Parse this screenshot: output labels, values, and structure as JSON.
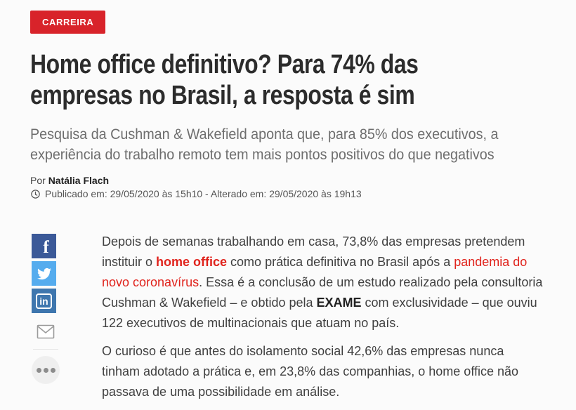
{
  "category": {
    "label": "CARREIRA"
  },
  "headline": {
    "lines": [
      "Home office definitivo? Para 74% das",
      "empresas no Brasil, a resposta é sim"
    ]
  },
  "subtitle": {
    "lines": [
      "Pesquisa da Cushman & Wakefield aponta que, para 85% dos executivos, a",
      "experiência do trabalho remoto tem mais pontos positivos do que negativos"
    ]
  },
  "byline": {
    "prefix": "Por",
    "author": "Natália Flach"
  },
  "timestamps": {
    "text": "Publicado em: 29/05/2020 às 15h10 - Alterado em: 29/05/2020 às 19h13"
  },
  "share": {
    "facebook": {
      "glyph": "f",
      "color": "#3b5998",
      "icon": "facebook-icon"
    },
    "twitter": {
      "color": "#55acee",
      "icon": "twitter-bird-icon"
    },
    "linkedin": {
      "glyph": "in",
      "color": "#3e76ae",
      "icon": "linkedin-icon"
    },
    "email": {
      "icon": "envelope-icon"
    },
    "more": {
      "icon": "ellipsis-icon"
    }
  },
  "article": {
    "paragraphs": [
      {
        "segments": [
          {
            "text": "Depois de semanas trabalhando em casa, 73,8% das empresas pretendem instituir o ",
            "style": "normal"
          },
          {
            "text": "home office",
            "style": "link-bold"
          },
          {
            "text": " como prática definitiva no Brasil após a ",
            "style": "normal"
          },
          {
            "text": "pandemia do novo coronavírus",
            "style": "link"
          },
          {
            "text": ". Essa é a conclusão de um estudo realizado pela consultoria Cushman & Wakefield – e obtido pela ",
            "style": "normal"
          },
          {
            "text": "EXAME",
            "style": "bold"
          },
          {
            "text": " com exclusividade – que ouviu 122 executivos de multinacionais que atuam no país.",
            "style": "normal"
          }
        ]
      },
      {
        "segments": [
          {
            "text": "O curioso é que antes do isolamento social 42,6% das empresas nunca tinham adotado a prática e, em 23,8% das companhias, o home office não passava de uma possibilidade em análise.",
            "style": "normal"
          }
        ]
      }
    ]
  },
  "colors": {
    "badge_red": "#d8232a",
    "link_red": "#e0231c",
    "headline_ink": "#2c2c2c",
    "subtitle_gray": "#6e6e6e",
    "facebook_blue": "#3b5998",
    "twitter_blue": "#55acee",
    "linkedin_blue": "#3e76ae"
  }
}
